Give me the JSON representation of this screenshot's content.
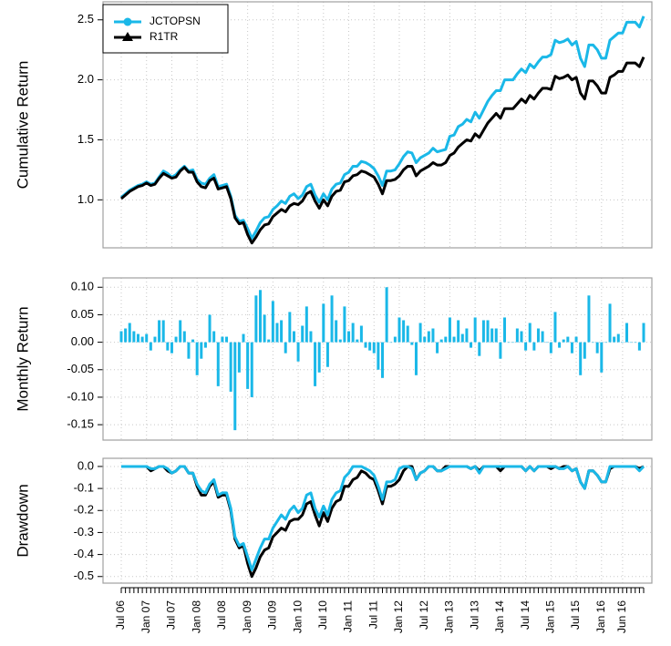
{
  "chart_data": [
    {
      "type": "line",
      "y_label": "Cumulative Return",
      "ylim": [
        0.6,
        2.65
      ],
      "yticks": [
        {
          "value": 1,
          "label": "1.0"
        },
        1.5,
        {
          "value": 2,
          "label": "2.0"
        },
        2.5
      ],
      "grid": true,
      "legend": "top-left",
      "series": [
        {
          "name": "JCTOPSN",
          "color": "#1ab8e8",
          "marker": "circle",
          "values": [
            1.02,
            1.05,
            1.08,
            1.1,
            1.12,
            1.13,
            1.15,
            1.13,
            1.14,
            1.19,
            1.24,
            1.22,
            1.19,
            1.21,
            1.25,
            1.28,
            1.24,
            1.25,
            1.17,
            1.14,
            1.13,
            1.18,
            1.21,
            1.11,
            1.12,
            1.13,
            1.03,
            0.87,
            0.82,
            0.83,
            0.76,
            0.68,
            0.74,
            0.81,
            0.85,
            0.86,
            0.92,
            0.95,
            0.99,
            0.97,
            1.03,
            1.05,
            1.01,
            1.04,
            1.11,
            1.13,
            1.04,
            0.98,
            1.05,
            1.0,
            1.09,
            1.13,
            1.14,
            1.21,
            1.23,
            1.28,
            1.28,
            1.32,
            1.31,
            1.29,
            1.26,
            1.2,
            1.12,
            1.24,
            1.24,
            1.25,
            1.3,
            1.36,
            1.4,
            1.39,
            1.31,
            1.35,
            1.37,
            1.39,
            1.43,
            1.4,
            1.41,
            1.42,
            1.53,
            1.54,
            1.61,
            1.63,
            1.67,
            1.65,
            1.73,
            1.68,
            1.75,
            1.82,
            1.87,
            1.91,
            1.91,
            2.0,
            2.0,
            2.0,
            2.05,
            2.09,
            2.06,
            2.13,
            2.1,
            2.15,
            2.19,
            2.19,
            2.21,
            2.33,
            2.31,
            2.32,
            2.34,
            2.29,
            2.32,
            2.18,
            2.11,
            2.29,
            2.29,
            2.25,
            2.18,
            2.18,
            2.33,
            2.36,
            2.39,
            2.39,
            2.48,
            2.48,
            2.48,
            2.44,
            2.53
          ]
        },
        {
          "name": "R1TR",
          "color": "#000000",
          "marker": "triangle",
          "values": [
            1.01,
            1.04,
            1.07,
            1.09,
            1.11,
            1.12,
            1.14,
            1.12,
            1.13,
            1.18,
            1.22,
            1.2,
            1.18,
            1.19,
            1.24,
            1.27,
            1.23,
            1.23,
            1.15,
            1.11,
            1.1,
            1.16,
            1.18,
            1.09,
            1.1,
            1.11,
            1.01,
            0.85,
            0.8,
            0.81,
            0.71,
            0.64,
            0.69,
            0.75,
            0.79,
            0.8,
            0.86,
            0.89,
            0.92,
            0.9,
            0.95,
            0.97,
            0.96,
            0.99,
            1.05,
            1.07,
            0.99,
            0.93,
            1.0,
            0.95,
            1.03,
            1.07,
            1.08,
            1.15,
            1.16,
            1.2,
            1.21,
            1.24,
            1.23,
            1.21,
            1.19,
            1.13,
            1.05,
            1.16,
            1.16,
            1.17,
            1.2,
            1.25,
            1.28,
            1.28,
            1.2,
            1.24,
            1.26,
            1.28,
            1.31,
            1.29,
            1.29,
            1.31,
            1.37,
            1.39,
            1.44,
            1.47,
            1.5,
            1.49,
            1.55,
            1.52,
            1.58,
            1.64,
            1.68,
            1.72,
            1.68,
            1.76,
            1.76,
            1.76,
            1.8,
            1.84,
            1.81,
            1.87,
            1.84,
            1.89,
            1.93,
            1.93,
            1.92,
            2.03,
            2.01,
            2.02,
            2.04,
            2.0,
            2.02,
            1.89,
            1.84,
            1.99,
            1.99,
            1.95,
            1.89,
            1.89,
            2.02,
            2.04,
            2.07,
            2.07,
            2.14,
            2.14,
            2.14,
            2.11,
            2.19
          ]
        }
      ]
    },
    {
      "type": "bar",
      "y_label": "Monthly Return",
      "ylim": [
        -0.178,
        0.117
      ],
      "yticks": [
        {
          "value": 0.1,
          "label": "0.10"
        },
        0.05,
        {
          "value": 0,
          "label": "0.00"
        },
        -0.05,
        {
          "value": -0.1,
          "label": "-0.10"
        },
        -0.15
      ],
      "grid": true,
      "series": [
        {
          "color": "#1ab8e8",
          "values": [
            0.02,
            0.025,
            0.035,
            0.02,
            0.015,
            0.01,
            0.015,
            -0.015,
            0.01,
            0.04,
            0.04,
            -0.015,
            -0.02,
            0.01,
            0.04,
            0.02,
            -0.03,
            0.005,
            -0.06,
            -0.03,
            -0.01,
            0.05,
            0.02,
            -0.08,
            0.01,
            0.01,
            -0.09,
            -0.16,
            -0.055,
            0.015,
            -0.085,
            -0.1,
            0.085,
            0.095,
            0.05,
            0.005,
            0.075,
            0.035,
            0.04,
            -0.02,
            0.055,
            0.02,
            -0.035,
            0.03,
            0.065,
            0.02,
            -0.08,
            -0.055,
            0.07,
            -0.045,
            0.085,
            0.04,
            0.005,
            0.065,
            0.02,
            0.035,
            0.005,
            0.03,
            -0.01,
            -0.015,
            -0.02,
            -0.05,
            -0.065,
            0.1,
            0,
            0.01,
            0.045,
            0.04,
            0.03,
            -0.005,
            -0.06,
            0.035,
            0.01,
            0.02,
            0.025,
            -0.02,
            0.005,
            0.01,
            0.045,
            0.01,
            0.04,
            0.015,
            0.025,
            -0.01,
            0.045,
            -0.025,
            0.04,
            0.04,
            0.025,
            0.025,
            -0.03,
            0.045,
            0,
            0,
            0.025,
            0.02,
            -0.015,
            0.035,
            -0.015,
            0.025,
            0.02,
            0,
            -0.02,
            0.055,
            -0.01,
            0.005,
            0.01,
            -0.02,
            0.01,
            -0.06,
            -0.03,
            0.085,
            0,
            -0.02,
            -0.055,
            0,
            0.07,
            0.01,
            0.015,
            0,
            0.035,
            0,
            0,
            -0.015,
            0.035
          ]
        }
      ]
    },
    {
      "type": "line",
      "y_label": "Drawdown",
      "ylim": [
        -0.53,
        0.037
      ],
      "yticks": [
        {
          "value": 0,
          "label": "0.0"
        },
        -0.1,
        -0.2,
        -0.3,
        -0.4,
        -0.5
      ],
      "grid": true,
      "categories": [
        "Jul 06",
        null,
        null,
        null,
        null,
        null,
        "Jan 07",
        null,
        null,
        null,
        null,
        null,
        "Jul 07",
        null,
        null,
        null,
        null,
        null,
        "Jan 08",
        null,
        null,
        null,
        null,
        null,
        "Jul 08",
        null,
        null,
        null,
        null,
        null,
        "Jan 09",
        null,
        null,
        null,
        null,
        null,
        "Jul 09",
        null,
        null,
        null,
        null,
        null,
        "Jan 10",
        null,
        null,
        null,
        null,
        null,
        "Jul 10",
        null,
        null,
        null,
        null,
        null,
        "Jan 11",
        null,
        null,
        null,
        null,
        null,
        "Jul 11",
        null,
        null,
        null,
        null,
        null,
        "Jan 12",
        null,
        null,
        null,
        null,
        null,
        "Jul 12",
        null,
        null,
        null,
        null,
        null,
        "Jan 13",
        null,
        null,
        null,
        null,
        null,
        "Jul 13",
        null,
        null,
        null,
        null,
        null,
        "Jan 14",
        null,
        null,
        null,
        null,
        null,
        "Jul 14",
        null,
        null,
        null,
        null,
        null,
        "Jan 15",
        null,
        null,
        null,
        null,
        null,
        "Jul 15",
        null,
        null,
        null,
        null,
        null,
        "Jan 16",
        null,
        null,
        null,
        null,
        "Jun 16",
        null,
        null,
        null,
        null,
        null
      ],
      "series": [
        {
          "color": "#000000",
          "values": [
            0,
            0,
            0,
            0,
            0,
            0,
            0,
            -0.02,
            -0.01,
            0,
            0,
            -0.02,
            -0.03,
            -0.02,
            0,
            0,
            -0.03,
            -0.03,
            -0.09,
            -0.13,
            -0.13,
            -0.09,
            -0.07,
            -0.14,
            -0.13,
            -0.13,
            -0.2,
            -0.33,
            -0.37,
            -0.36,
            -0.44,
            -0.5,
            -0.46,
            -0.41,
            -0.38,
            -0.37,
            -0.32,
            -0.3,
            -0.28,
            -0.29,
            -0.25,
            -0.24,
            -0.24,
            -0.22,
            -0.17,
            -0.16,
            -0.22,
            -0.27,
            -0.21,
            -0.25,
            -0.19,
            -0.16,
            -0.15,
            -0.09,
            -0.09,
            -0.06,
            -0.05,
            -0.02,
            -0.03,
            -0.05,
            -0.06,
            -0.11,
            -0.17,
            -0.09,
            -0.09,
            -0.08,
            -0.06,
            -0.02,
            0,
            0,
            -0.06,
            -0.03,
            -0.02,
            0,
            0,
            -0.02,
            -0.02,
            0,
            0,
            0,
            0,
            0,
            0,
            -0.01,
            0,
            -0.02,
            0,
            0,
            0,
            0,
            -0.02,
            0,
            0,
            0,
            0,
            0,
            -0.02,
            0,
            -0.02,
            0,
            0,
            0,
            -0.01,
            0,
            -0.01,
            0,
            0,
            -0.02,
            -0.01,
            -0.07,
            -0.1,
            -0.02,
            -0.02,
            -0.04,
            -0.07,
            -0.07,
            -0.01,
            0,
            0,
            0,
            0,
            0,
            0,
            -0.01,
            0
          ]
        },
        {
          "color": "#1ab8e8",
          "values": [
            0,
            0,
            0,
            0,
            0,
            0,
            0,
            -0.01,
            -0.01,
            0,
            0,
            -0.01,
            -0.03,
            -0.02,
            0,
            0,
            -0.03,
            -0.03,
            -0.08,
            -0.11,
            -0.12,
            -0.08,
            -0.06,
            -0.13,
            -0.12,
            -0.12,
            -0.19,
            -0.32,
            -0.36,
            -0.35,
            -0.41,
            -0.47,
            -0.42,
            -0.37,
            -0.33,
            -0.33,
            -0.28,
            -0.25,
            -0.22,
            -0.24,
            -0.2,
            -0.18,
            -0.21,
            -0.19,
            -0.13,
            -0.12,
            -0.19,
            -0.23,
            -0.18,
            -0.22,
            -0.15,
            -0.12,
            -0.11,
            -0.05,
            -0.03,
            0,
            0,
            0,
            -0.01,
            -0.02,
            -0.04,
            -0.09,
            -0.15,
            -0.07,
            -0.07,
            -0.06,
            -0.01,
            0,
            0,
            -0.01,
            -0.06,
            -0.03,
            -0.02,
            0,
            0,
            -0.02,
            -0.02,
            -0.01,
            0,
            0,
            0,
            0,
            0,
            -0.01,
            0,
            -0.03,
            0,
            0,
            0,
            0,
            0,
            0,
            0,
            0,
            0,
            0,
            -0.02,
            0,
            -0.02,
            0,
            0,
            0,
            0,
            0,
            -0.01,
            -0.01,
            0,
            -0.02,
            -0.01,
            -0.07,
            -0.1,
            -0.02,
            -0.02,
            -0.04,
            -0.07,
            -0.07,
            0,
            0,
            0,
            0,
            0,
            0,
            0,
            -0.02,
            0
          ]
        }
      ]
    }
  ]
}
